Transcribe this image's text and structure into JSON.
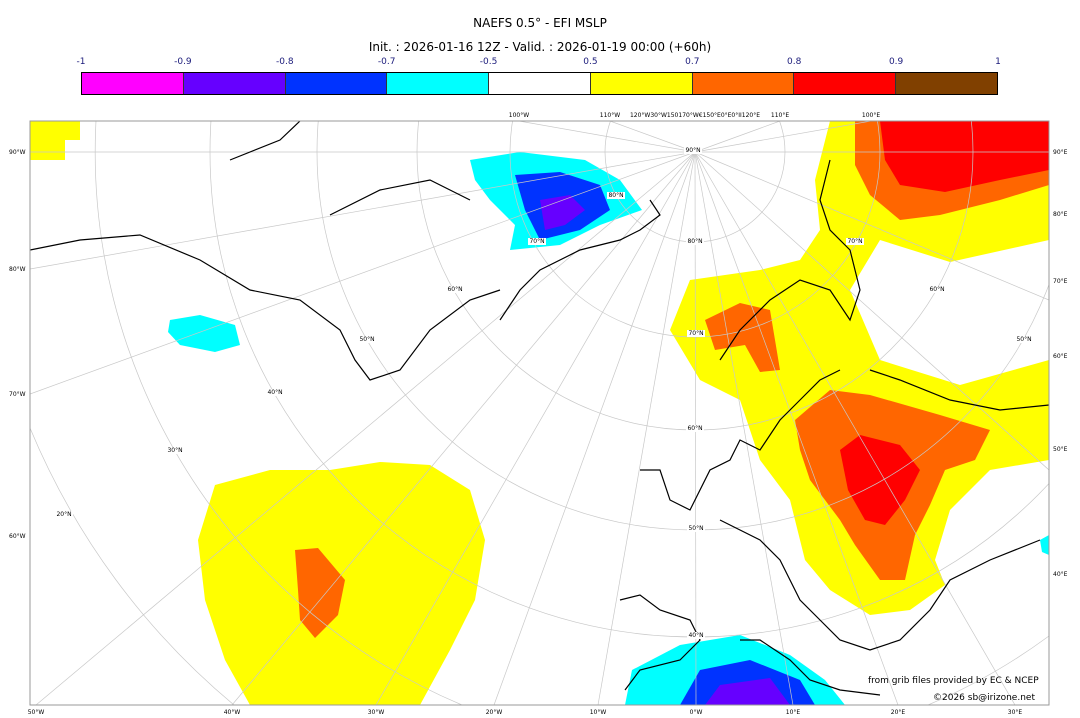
{
  "title": "NAEFS 0.5° - EFI MSLP",
  "subtitle": "Init. : 2026-01-16 12Z - Valid. : 2026-01-19 00:00 (+60h)",
  "colorbar": {
    "ticks": [
      "-1",
      "-0.9",
      "-0.8",
      "-0.7",
      "-0.5",
      "0.5",
      "0.7",
      "0.8",
      "0.9",
      "1"
    ],
    "colors": [
      "#ff00ff",
      "#6600ff",
      "#0033ff",
      "#00ffff",
      "#ffffff",
      "#ffff00",
      "#ff6600",
      "#ff0000",
      "#804000"
    ]
  },
  "map": {
    "left_labels": [
      "90°W",
      "80°W",
      "70°W",
      "60°W"
    ],
    "right_labels": [
      "90°E",
      "80°E",
      "70°E",
      "60°E",
      "50°E",
      "40°E"
    ],
    "bottom_labels": [
      "50°W",
      "40°W",
      "30°W",
      "20°W",
      "10°W",
      "0°W",
      "10°E",
      "20°E",
      "30°E"
    ],
    "top_labels": [
      "100°W",
      "110°W",
      "120°W30°W150170°W€150°E0°E0°II120°E",
      "110°E",
      "100°E"
    ],
    "lat_labels": [
      "70°N",
      "80°N",
      "70°N",
      "60°N",
      "60°N",
      "50°N",
      "50°N",
      "70°N",
      "40°N",
      "60°N",
      "30°N",
      "50°N",
      "20°N",
      "40°N",
      "80°N",
      "90°N"
    ]
  },
  "credits": {
    "source": "from grib files provided by EC & NCEP",
    "copyright": "©2026 sb@irizone.net"
  }
}
